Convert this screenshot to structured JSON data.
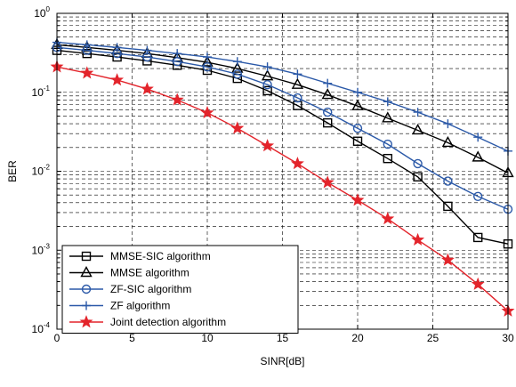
{
  "chart_data": {
    "type": "line",
    "title": "",
    "xlabel": "SINR[dB]",
    "ylabel": "BER",
    "xlim": [
      0,
      30
    ],
    "ylim": [
      0.0001,
      1
    ],
    "yscale": "log",
    "grid": true,
    "legend_position": "bottom-left",
    "x_ticks": [
      "0",
      "5",
      "10",
      "15",
      "20",
      "25",
      "30"
    ],
    "y_ticks": [
      {
        "base": "10",
        "exp": "-4",
        "value": 0.0001
      },
      {
        "base": "10",
        "exp": "-3",
        "value": 0.001
      },
      {
        "base": "10",
        "exp": "-2",
        "value": 0.01
      },
      {
        "base": "10",
        "exp": "-1",
        "value": 0.1
      },
      {
        "base": "10",
        "exp": "0",
        "value": 1
      }
    ],
    "x": [
      0,
      2,
      4,
      6,
      8,
      10,
      12,
      14,
      16,
      18,
      20,
      22,
      24,
      26,
      28,
      30
    ],
    "series": [
      {
        "name": "MMSE-SIC algorithm",
        "color": "#000000",
        "marker": "square",
        "values": [
          0.34,
          0.31,
          0.28,
          0.25,
          0.22,
          0.19,
          0.15,
          0.105,
          0.068,
          0.041,
          0.024,
          0.0145,
          0.0085,
          0.0036,
          0.00145,
          0.0012
        ]
      },
      {
        "name": "MMSE algorithm",
        "color": "#000000",
        "marker": "triangle",
        "values": [
          0.4,
          0.37,
          0.34,
          0.31,
          0.275,
          0.24,
          0.2,
          0.16,
          0.125,
          0.093,
          0.067,
          0.047,
          0.033,
          0.023,
          0.015,
          0.0095
        ]
      },
      {
        "name": "ZF-SIC algorithm",
        "color": "#2b59a8",
        "marker": "circle",
        "values": [
          0.37,
          0.34,
          0.31,
          0.28,
          0.245,
          0.21,
          0.17,
          0.125,
          0.085,
          0.056,
          0.035,
          0.022,
          0.0125,
          0.0075,
          0.0048,
          0.0033
        ]
      },
      {
        "name": "ZF algorithm",
        "color": "#2b59a8",
        "marker": "plus",
        "values": [
          0.43,
          0.4,
          0.37,
          0.34,
          0.31,
          0.28,
          0.245,
          0.21,
          0.17,
          0.13,
          0.1,
          0.076,
          0.056,
          0.04,
          0.027,
          0.018
        ]
      },
      {
        "name": "Joint detection algorithm",
        "color": "#e3242b",
        "marker": "star",
        "values": [
          0.21,
          0.175,
          0.143,
          0.11,
          0.08,
          0.055,
          0.035,
          0.021,
          0.0125,
          0.0072,
          0.0043,
          0.0025,
          0.00135,
          0.00075,
          0.00037,
          0.00017
        ]
      }
    ]
  }
}
